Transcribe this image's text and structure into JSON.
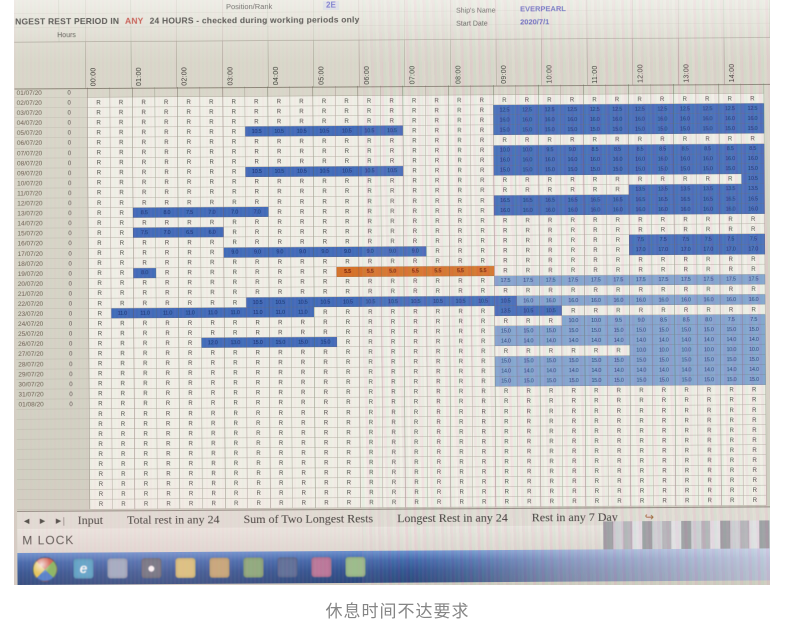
{
  "caption": "休息时间不达要求",
  "colors": {
    "rest_blue": "#3d6ac2",
    "rest_blue_light": "#7fa3d6",
    "alert_orange": "#e0701e"
  },
  "sheet": {
    "position_rank_label": "Position/Rank",
    "position_rank_value": "2E",
    "title_pre": "NGEST REST PERIOD IN",
    "title_any": "ANY",
    "title_post": "24 HOURS - checked during working periods only",
    "ship_name_label": "Ship's Name",
    "ship_name_value": "EVERPEARL",
    "start_date_label": "Start Date",
    "start_date_value": "2020/7/1",
    "hours_label": "Hours",
    "rest_symbol": "R",
    "hour_columns": [
      "00:00",
      "01:00",
      "02:00",
      "03:00",
      "04:00",
      "05:00",
      "06:00",
      "07:00",
      "08:00",
      "09:00",
      "10:00",
      "11:00",
      "12:00",
      "13:00",
      "14:00"
    ],
    "rows": [
      {
        "date": "01/07/20",
        "flag": "0",
        "seg": [
          [
            "e",
            30
          ]
        ]
      },
      {
        "date": "02/07/20",
        "flag": "0",
        "seg": [
          [
            "r",
            30
          ]
        ]
      },
      {
        "date": "03/07/20",
        "flag": "0",
        "seg": [
          [
            "r",
            18
          ],
          [
            "b",
            12,
            "12.5"
          ]
        ]
      },
      {
        "date": "04/07/20",
        "flag": "0",
        "seg": [
          [
            "r",
            18
          ],
          [
            "b",
            12,
            "16.0"
          ]
        ]
      },
      {
        "date": "05/07/20",
        "flag": "0",
        "seg": [
          [
            "r",
            7
          ],
          [
            "b",
            7,
            "10.5"
          ],
          [
            "r",
            4
          ],
          [
            "b",
            12,
            "15.0"
          ]
        ]
      },
      {
        "date": "06/07/20",
        "flag": "0",
        "seg": [
          [
            "r",
            30
          ]
        ]
      },
      {
        "date": "07/07/20",
        "flag": "0",
        "seg": [
          [
            "r",
            18
          ],
          [
            "b",
            2,
            "10.0"
          ],
          [
            "b",
            1,
            "9.5"
          ],
          [
            "b",
            1,
            "9.0"
          ],
          [
            "b",
            8,
            "8.5"
          ]
        ]
      },
      {
        "date": "08/07/20",
        "flag": "0",
        "seg": [
          [
            "r",
            18
          ],
          [
            "b",
            12,
            "16.0"
          ]
        ]
      },
      {
        "date": "09/07/20",
        "flag": "0",
        "seg": [
          [
            "r",
            7
          ],
          [
            "b",
            7,
            "10.5"
          ],
          [
            "r",
            4
          ],
          [
            "b",
            12,
            "15.0"
          ]
        ]
      },
      {
        "date": "10/07/20",
        "flag": "0",
        "seg": [
          [
            "r",
            29
          ],
          [
            "b",
            1,
            "10.5"
          ]
        ]
      },
      {
        "date": "11/07/20",
        "flag": "0",
        "seg": [
          [
            "r",
            24
          ],
          [
            "b",
            6,
            "13.5"
          ]
        ]
      },
      {
        "date": "12/07/20",
        "flag": "0",
        "seg": [
          [
            "r",
            18
          ],
          [
            "b",
            12,
            "16.5"
          ]
        ]
      },
      {
        "date": "13/07/20",
        "flag": "0",
        "seg": [
          [
            "r",
            2
          ],
          [
            "b",
            1,
            "8.5"
          ],
          [
            "b",
            1,
            "8.0"
          ],
          [
            "b",
            1,
            "7.5"
          ],
          [
            "b",
            3,
            "7.0"
          ],
          [
            "r",
            10
          ],
          [
            "b",
            12,
            "16.0"
          ]
        ]
      },
      {
        "date": "14/07/20",
        "flag": "0",
        "seg": [
          [
            "r",
            30
          ]
        ]
      },
      {
        "date": "15/07/20",
        "flag": "0",
        "seg": [
          [
            "r",
            2
          ],
          [
            "b",
            1,
            "7.5"
          ],
          [
            "b",
            1,
            "7.0"
          ],
          [
            "b",
            1,
            "6.5"
          ],
          [
            "b",
            1,
            "6.0"
          ],
          [
            "r",
            24
          ]
        ]
      },
      {
        "date": "16/07/20",
        "flag": "0",
        "seg": [
          [
            "r",
            24
          ],
          [
            "b",
            6,
            "7.5"
          ]
        ]
      },
      {
        "date": "17/07/20",
        "flag": "0",
        "seg": [
          [
            "r",
            6
          ],
          [
            "b",
            9,
            "9.0"
          ],
          [
            "r",
            9
          ],
          [
            "b",
            6,
            "17.0"
          ]
        ]
      },
      {
        "date": "18/07/20",
        "flag": "0",
        "seg": [
          [
            "r",
            30
          ]
        ]
      },
      {
        "date": "19/07/20",
        "flag": "0",
        "seg": [
          [
            "r",
            2
          ],
          [
            "b",
            1,
            "8.0"
          ],
          [
            "r",
            8
          ],
          [
            "o",
            2,
            "5.5"
          ],
          [
            "o",
            1,
            "5.0"
          ],
          [
            "o",
            4,
            "5.5"
          ],
          [
            "r",
            12
          ]
        ]
      },
      {
        "date": "20/07/20",
        "flag": "0",
        "seg": [
          [
            "r",
            18
          ],
          [
            "c",
            12,
            "17.5"
          ]
        ]
      },
      {
        "date": "21/07/20",
        "flag": "0",
        "seg": [
          [
            "r",
            30
          ]
        ]
      },
      {
        "date": "22/07/20",
        "flag": "0",
        "seg": [
          [
            "r",
            7
          ],
          [
            "b",
            12,
            "10.5"
          ],
          [
            "c",
            11,
            "16.0"
          ]
        ]
      },
      {
        "date": "23/07/20",
        "flag": "0",
        "seg": [
          [
            "r",
            1
          ],
          [
            "b",
            9,
            "11.0"
          ],
          [
            "r",
            8
          ],
          [
            "b",
            1,
            "13.5"
          ],
          [
            "b",
            2,
            "10.5"
          ],
          [
            "r",
            9
          ]
        ]
      },
      {
        "date": "24/07/20",
        "flag": "0",
        "seg": [
          [
            "r",
            21
          ],
          [
            "c",
            2,
            "10.0"
          ],
          [
            "c",
            1,
            "9.5"
          ],
          [
            "c",
            1,
            "9.0"
          ],
          [
            "c",
            2,
            "8.5"
          ],
          [
            "c",
            1,
            "8.0"
          ],
          [
            "c",
            2,
            "7.5"
          ]
        ]
      },
      {
        "date": "25/07/20",
        "flag": "0",
        "seg": [
          [
            "r",
            18
          ],
          [
            "c",
            12,
            "15.0"
          ]
        ]
      },
      {
        "date": "26/07/20",
        "flag": "0",
        "seg": [
          [
            "r",
            5
          ],
          [
            "b",
            1,
            "12.0"
          ],
          [
            "b",
            1,
            "13.0"
          ],
          [
            "b",
            4,
            "15.0"
          ],
          [
            "r",
            7
          ],
          [
            "c",
            12,
            "14.0"
          ]
        ]
      },
      {
        "date": "27/07/20",
        "flag": "0",
        "seg": [
          [
            "r",
            24
          ],
          [
            "c",
            6,
            "10.0"
          ]
        ]
      },
      {
        "date": "28/07/20",
        "flag": "0",
        "seg": [
          [
            "r",
            18
          ],
          [
            "c",
            12,
            "15.0"
          ]
        ]
      },
      {
        "date": "29/07/20",
        "flag": "0",
        "seg": [
          [
            "r",
            18
          ],
          [
            "c",
            12,
            "14.0"
          ]
        ]
      },
      {
        "date": "30/07/20",
        "flag": "0",
        "seg": [
          [
            "r",
            18
          ],
          [
            "c",
            12,
            "15.0"
          ]
        ]
      },
      {
        "date": "31/07/20",
        "flag": "0",
        "seg": [
          [
            "r",
            30
          ]
        ]
      },
      {
        "date": "01/08/20",
        "flag": "0",
        "seg": [
          [
            "r",
            30
          ]
        ]
      },
      {
        "date": "",
        "flag": "",
        "seg": [
          [
            "r",
            30
          ]
        ]
      },
      {
        "date": "",
        "flag": "",
        "seg": [
          [
            "r",
            30
          ]
        ]
      },
      {
        "date": "",
        "flag": "",
        "seg": [
          [
            "r",
            30
          ]
        ]
      },
      {
        "date": "",
        "flag": "",
        "seg": [
          [
            "r",
            30
          ]
        ]
      },
      {
        "date": "",
        "flag": "",
        "seg": [
          [
            "r",
            30
          ]
        ]
      },
      {
        "date": "",
        "flag": "",
        "seg": [
          [
            "r",
            30
          ]
        ]
      },
      {
        "date": "",
        "flag": "",
        "seg": [
          [
            "r",
            30
          ]
        ]
      },
      {
        "date": "",
        "flag": "",
        "seg": [
          [
            "r",
            30
          ]
        ]
      },
      {
        "date": "",
        "flag": "",
        "seg": [
          [
            "r",
            30
          ]
        ]
      },
      {
        "date": "",
        "flag": "",
        "seg": [
          [
            "r",
            30
          ]
        ]
      }
    ]
  },
  "tabs": {
    "nav": [
      "◄",
      "►",
      "►|"
    ],
    "items": [
      "Input",
      "Total rest in any 24",
      "Sum of Two Longest Rests",
      "Longest Rest in any 24",
      "Rest in any 7 Day"
    ],
    "insert_icon": "↪"
  },
  "status_bar": {
    "text": "M LOCK"
  },
  "taskbar": {
    "icons": [
      {
        "name": "ie-icon",
        "color": "#35a3d8",
        "glyph": "e"
      },
      {
        "name": "app-icon",
        "color": "#91a6c6",
        "glyph": ""
      },
      {
        "name": "media-icon",
        "color": "#5a6478",
        "glyph": "●"
      },
      {
        "name": "folder-icon",
        "color": "#e0c05a",
        "glyph": ""
      },
      {
        "name": "folder2-icon",
        "color": "#caa05a",
        "glyph": ""
      },
      {
        "name": "app-green-icon",
        "color": "#7aa864",
        "glyph": ""
      },
      {
        "name": "app-navy-icon",
        "color": "#46639e",
        "glyph": ""
      },
      {
        "name": "app-pink-icon",
        "color": "#c46a9a",
        "glyph": ""
      },
      {
        "name": "app-lightgreen-icon",
        "color": "#8fbf7a",
        "glyph": ""
      }
    ]
  }
}
